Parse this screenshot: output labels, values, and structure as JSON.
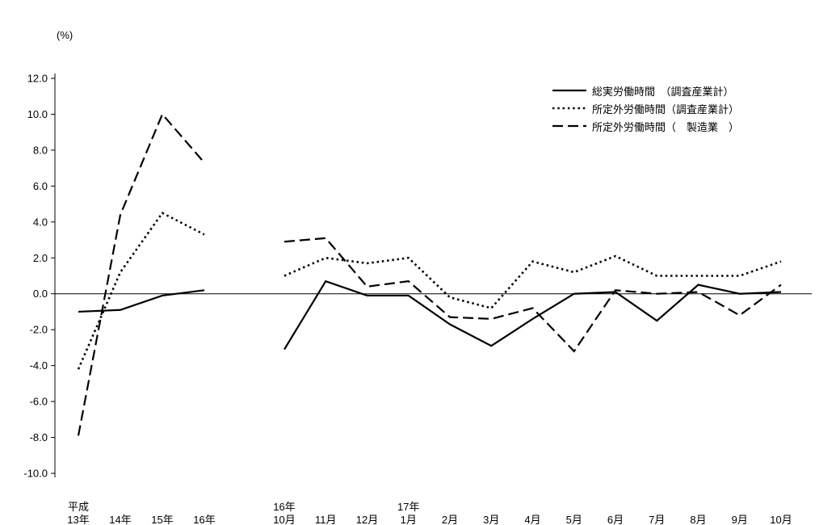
{
  "percent_label": "(%)",
  "chart_data": {
    "type": "line",
    "title": "",
    "ylabel": "(%)",
    "xlabel": "",
    "ylim": [
      -10,
      12
    ],
    "yticks": [
      12,
      10,
      8,
      6,
      4,
      2,
      0,
      -2,
      -4,
      -6,
      -8,
      -10
    ],
    "grid": false,
    "legend_position": "top-right",
    "line_color": "#000000",
    "x_groups": [
      {
        "name": "annual",
        "categories": [
          "平成\n13年",
          "14年",
          "15年",
          "16年"
        ]
      },
      {
        "name": "monthly",
        "categories": [
          "16年\n10月",
          "11月",
          "12月",
          "17年\n1月",
          "2月",
          "3月",
          "4月",
          "5月",
          "6月",
          "7月",
          "8月",
          "9月",
          "10月"
        ]
      }
    ],
    "series": [
      {
        "name": "総実労働時間　（調査産業計）",
        "line_style": "solid",
        "color": "#000000",
        "annual_values": [
          -1.0,
          -0.9,
          -0.1,
          0.2
        ],
        "monthly_values": [
          -3.1,
          0.7,
          -0.1,
          -0.1,
          -1.7,
          -2.9,
          -1.4,
          0.0,
          0.1,
          -1.5,
          0.5,
          0.0,
          0.1
        ]
      },
      {
        "name": "所定外労働時間（調査産業計）",
        "line_style": "dotted",
        "color": "#000000",
        "annual_values": [
          -4.2,
          1.2,
          4.5,
          3.3
        ],
        "monthly_values": [
          1.0,
          2.0,
          1.7,
          2.0,
          -0.2,
          -0.8,
          1.8,
          1.2,
          2.1,
          1.0,
          1.0,
          1.0,
          1.8
        ]
      },
      {
        "name": "所定外労働時間（　製造業　）",
        "line_style": "dashed",
        "color": "#000000",
        "annual_values": [
          -7.9,
          4.4,
          10.0,
          7.3
        ],
        "monthly_values": [
          2.9,
          3.1,
          0.4,
          0.7,
          -1.3,
          -1.4,
          -0.8,
          -3.2,
          0.2,
          0.0,
          0.1,
          -1.2,
          0.5
        ]
      }
    ]
  }
}
